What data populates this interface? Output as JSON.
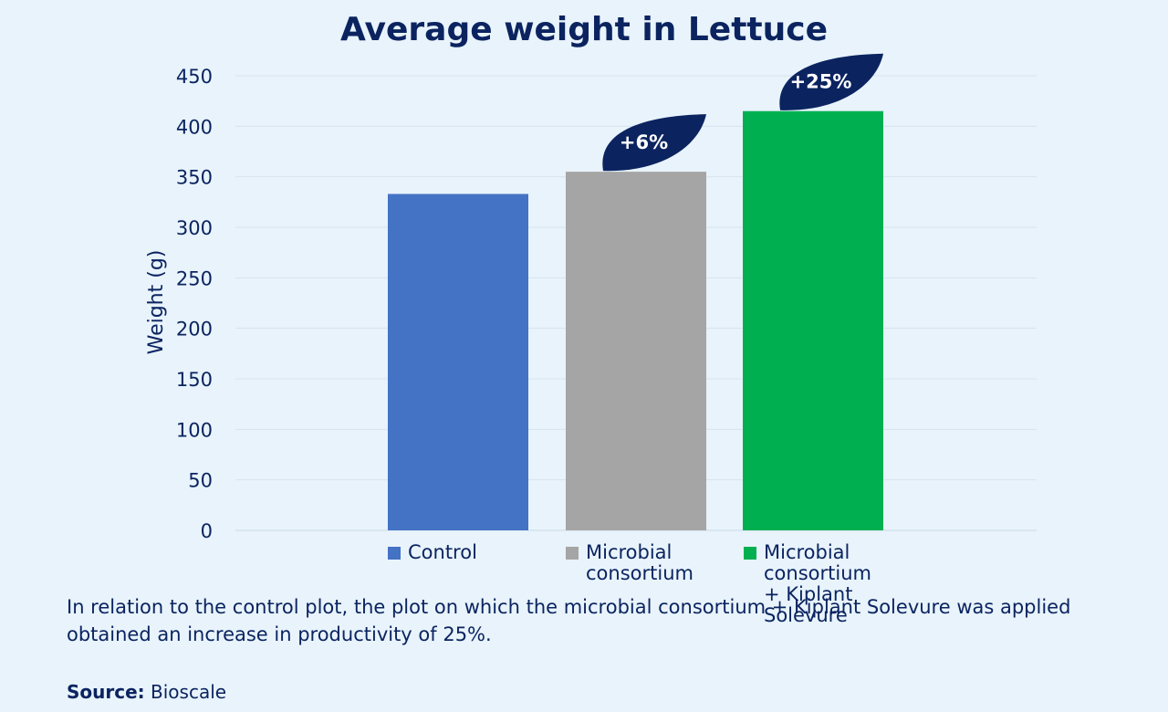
{
  "chart_data": {
    "type": "bar",
    "title": "Average weight in Lettuce",
    "ylabel": "Weight (g)",
    "xlabel": "",
    "ylim": [
      0,
      450
    ],
    "yticks": [
      0,
      50,
      100,
      150,
      200,
      250,
      300,
      350,
      400,
      450
    ],
    "grid": true,
    "legend_position": "bottom",
    "categories": [
      "Control",
      "Microbial\nconsortium",
      "Microbial consortium\n+ Kiplant Solevure"
    ],
    "values": [
      333,
      355,
      415
    ],
    "colors": [
      "#4472c4",
      "#a5a5a5",
      "#00b050"
    ],
    "annotations": [
      "",
      "+6%",
      "+25%"
    ]
  },
  "caption": "In relation to the control plot, the plot on which the microbial consortium + Kiplant Solevure was applied obtained an increase in productivity of 25%.",
  "source": {
    "label": "Source:",
    "value": " Bioscale"
  },
  "colors": {
    "background": "#e8f3fb",
    "text": "#0b2460",
    "leaf": "#0b2460",
    "grid": "#d6e4ef"
  }
}
